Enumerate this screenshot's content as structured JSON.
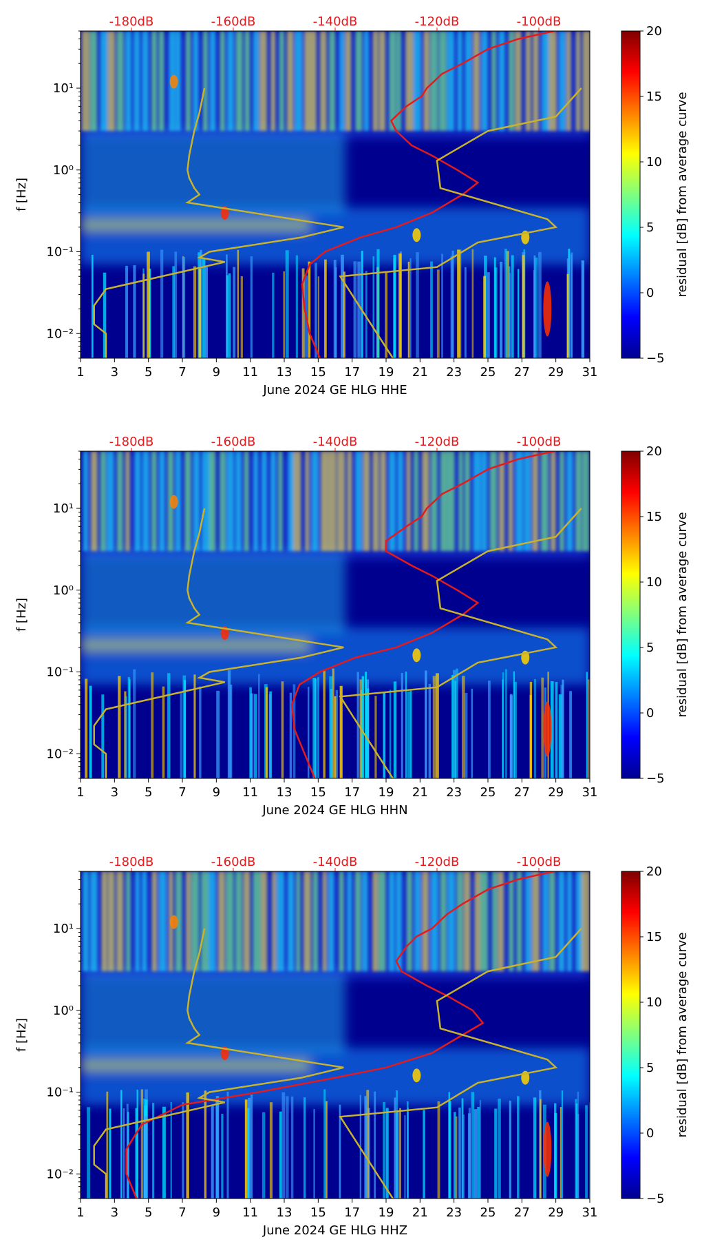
{
  "chart_data": [
    {
      "type": "heatmap",
      "component": "HHE",
      "xlabel": "June 2024 GE HLG  HHE",
      "ylabel": "f [Hz]",
      "x_ticks": [
        "1",
        "3",
        "5",
        "7",
        "9",
        "11",
        "13",
        "15",
        "17",
        "19",
        "21",
        "23",
        "25",
        "27",
        "29",
        "31"
      ],
      "xlim": [
        1,
        31
      ],
      "ylim_hz": [
        0.005,
        50
      ],
      "y_ticks": [
        {
          "label": "10⁻²",
          "value": 0.01
        },
        {
          "label": "10⁻¹",
          "value": 0.1
        },
        {
          "label": "10⁰",
          "value": 1
        },
        {
          "label": "10¹",
          "value": 10
        }
      ],
      "top_axis_labels": [
        {
          "label": "-180dB",
          "value": -180
        },
        {
          "label": "-160dB",
          "value": -160
        },
        {
          "label": "-140dB",
          "value": -140
        },
        {
          "label": "-120dB",
          "value": -120
        },
        {
          "label": "-100dB",
          "value": -100
        }
      ],
      "top_axis_range_db": [
        -190,
        -90
      ],
      "colorbar": {
        "label": "residual [dB] from average curve",
        "min": -5,
        "max": 20,
        "ticks": [
          "−5",
          "0",
          "5",
          "10",
          "15",
          "20"
        ]
      },
      "average_psd_curve_red": {
        "freq_hz": [
          0.005,
          0.01,
          0.02,
          0.04,
          0.07,
          0.1,
          0.15,
          0.2,
          0.3,
          0.5,
          0.7,
          1,
          1.5,
          2,
          3,
          4,
          6,
          8,
          10,
          15,
          20,
          30,
          40,
          50
        ],
        "db": [
          -143,
          -145,
          -146,
          -146.5,
          -145,
          -142,
          -135,
          -128,
          -121,
          -115,
          -112,
          -116,
          -121,
          -125,
          -128,
          -129,
          -126,
          -123,
          -122,
          -119,
          -115,
          -110,
          -104,
          -97
        ]
      },
      "low_noise_model_yellow": {
        "day_axis_x": [
          2.5,
          2.5,
          1.8,
          1.8,
          2.5,
          8.2,
          9.5,
          8,
          8.6,
          14,
          16.5,
          7.3,
          8,
          7.7,
          7.4,
          7.3,
          7.4,
          7.7,
          8,
          8.3
        ],
        "freq_hz": [
          0.005,
          0.01,
          0.013,
          0.022,
          0.035,
          0.065,
          0.075,
          0.085,
          0.1,
          0.15,
          0.2,
          0.4,
          0.5,
          0.6,
          0.8,
          1,
          1.5,
          3,
          5,
          10
        ]
      },
      "high_noise_model_yellow": {
        "day_axis_x": [
          19.4,
          16.3,
          22,
          24.4,
          29,
          28.5,
          22.2,
          22,
          25,
          29,
          30.5
        ],
        "freq_hz": [
          0.005,
          0.05,
          0.065,
          0.13,
          0.2,
          0.25,
          0.6,
          1.3,
          3,
          4.5,
          10
        ]
      }
    },
    {
      "type": "heatmap",
      "component": "HHN",
      "xlabel": "June 2024 GE HLG  HHN",
      "ylabel": "f [Hz]",
      "x_ticks": [
        "1",
        "3",
        "5",
        "7",
        "9",
        "11",
        "13",
        "15",
        "17",
        "19",
        "21",
        "23",
        "25",
        "27",
        "29",
        "31"
      ],
      "xlim": [
        1,
        31
      ],
      "ylim_hz": [
        0.005,
        50
      ],
      "y_ticks": [
        {
          "label": "10⁻²",
          "value": 0.01
        },
        {
          "label": "10⁻¹",
          "value": 0.1
        },
        {
          "label": "10⁰",
          "value": 1
        },
        {
          "label": "10¹",
          "value": 10
        }
      ],
      "top_axis_labels": [
        {
          "label": "-180dB",
          "value": -180
        },
        {
          "label": "-160dB",
          "value": -160
        },
        {
          "label": "-140dB",
          "value": -140
        },
        {
          "label": "-120dB",
          "value": -120
        },
        {
          "label": "-100dB",
          "value": -100
        }
      ],
      "top_axis_range_db": [
        -190,
        -90
      ],
      "colorbar": {
        "label": "residual [dB] from average curve",
        "min": -5,
        "max": 20,
        "ticks": [
          "−5",
          "0",
          "5",
          "10",
          "15",
          "20"
        ]
      },
      "average_psd_curve_red": {
        "freq_hz": [
          0.005,
          0.01,
          0.02,
          0.04,
          0.07,
          0.1,
          0.15,
          0.2,
          0.3,
          0.5,
          0.7,
          1,
          1.5,
          2,
          3,
          4,
          6,
          8,
          10,
          15,
          20,
          30,
          40,
          50
        ],
        "db": [
          -144,
          -146,
          -148,
          -148.5,
          -147,
          -143,
          -136,
          -128,
          -121,
          -115,
          -112,
          -116,
          -121,
          -125,
          -130,
          -130,
          -126,
          -123,
          -122,
          -119,
          -115,
          -110,
          -104,
          -97
        ]
      },
      "low_noise_model_yellow": {
        "day_axis_x": [
          2.5,
          2.5,
          1.8,
          1.8,
          2.5,
          8.2,
          9.5,
          8,
          8.6,
          14,
          16.5,
          7.3,
          8,
          7.7,
          7.4,
          7.3,
          7.4,
          7.7,
          8,
          8.3
        ],
        "freq_hz": [
          0.005,
          0.01,
          0.013,
          0.022,
          0.035,
          0.065,
          0.075,
          0.085,
          0.1,
          0.15,
          0.2,
          0.4,
          0.5,
          0.6,
          0.8,
          1,
          1.5,
          3,
          5,
          10
        ]
      },
      "high_noise_model_yellow": {
        "day_axis_x": [
          19.4,
          16.3,
          22,
          24.4,
          29,
          28.5,
          22.2,
          22,
          25,
          29,
          30.5
        ],
        "freq_hz": [
          0.005,
          0.05,
          0.065,
          0.13,
          0.2,
          0.25,
          0.6,
          1.3,
          3,
          4.5,
          10
        ]
      }
    },
    {
      "type": "heatmap",
      "component": "HHZ",
      "xlabel": "June 2024 GE HLG  HHZ",
      "ylabel": "f [Hz]",
      "x_ticks": [
        "1",
        "3",
        "5",
        "7",
        "9",
        "11",
        "13",
        "15",
        "17",
        "19",
        "21",
        "23",
        "25",
        "27",
        "29",
        "31"
      ],
      "xlim": [
        1,
        31
      ],
      "ylim_hz": [
        0.005,
        50
      ],
      "y_ticks": [
        {
          "label": "10⁻²",
          "value": 0.01
        },
        {
          "label": "10⁻¹",
          "value": 0.1
        },
        {
          "label": "10⁰",
          "value": 1
        },
        {
          "label": "10¹",
          "value": 10
        }
      ],
      "top_axis_labels": [
        {
          "label": "-180dB",
          "value": -180
        },
        {
          "label": "-160dB",
          "value": -160
        },
        {
          "label": "-140dB",
          "value": -140
        },
        {
          "label": "-120dB",
          "value": -120
        },
        {
          "label": "-100dB",
          "value": -100
        }
      ],
      "top_axis_range_db": [
        -190,
        -90
      ],
      "colorbar": {
        "label": "residual [dB] from average curve",
        "min": -5,
        "max": 20,
        "ticks": [
          "−5",
          "0",
          "5",
          "10",
          "15",
          "20"
        ]
      },
      "average_psd_curve_red": {
        "freq_hz": [
          0.005,
          0.01,
          0.02,
          0.04,
          0.07,
          0.1,
          0.15,
          0.2,
          0.3,
          0.5,
          0.7,
          1,
          1.5,
          2,
          3,
          4,
          6,
          8,
          10,
          15,
          20,
          30,
          40,
          50
        ],
        "db": [
          -179,
          -181,
          -181,
          -178,
          -170,
          -155,
          -140,
          -130,
          -121,
          -115,
          -111,
          -113,
          -118,
          -122,
          -127,
          -128,
          -126,
          -124,
          -121,
          -118,
          -115,
          -110,
          -104,
          -97
        ]
      },
      "low_noise_model_yellow": {
        "day_axis_x": [
          2.5,
          2.5,
          1.8,
          1.8,
          2.5,
          8.2,
          9.5,
          8,
          8.6,
          14,
          16.5,
          7.3,
          8,
          7.7,
          7.4,
          7.3,
          7.4,
          7.7,
          8,
          8.3
        ],
        "freq_hz": [
          0.005,
          0.01,
          0.013,
          0.022,
          0.035,
          0.065,
          0.075,
          0.085,
          0.1,
          0.15,
          0.2,
          0.4,
          0.5,
          0.6,
          0.8,
          1,
          1.5,
          3,
          5,
          10
        ]
      },
      "high_noise_model_yellow": {
        "day_axis_x": [
          19.4,
          16.3,
          22,
          24.4,
          29,
          28.5,
          22.2,
          22,
          25,
          29,
          30.5
        ],
        "freq_hz": [
          0.005,
          0.05,
          0.065,
          0.13,
          0.2,
          0.25,
          0.6,
          1.3,
          3,
          4.5,
          10
        ]
      }
    }
  ],
  "colors": {
    "top_label": "#e8191c",
    "avg_curve": "#e41a1c",
    "noise_model": "#c8b22e",
    "spectro_bg": "#00008f"
  }
}
